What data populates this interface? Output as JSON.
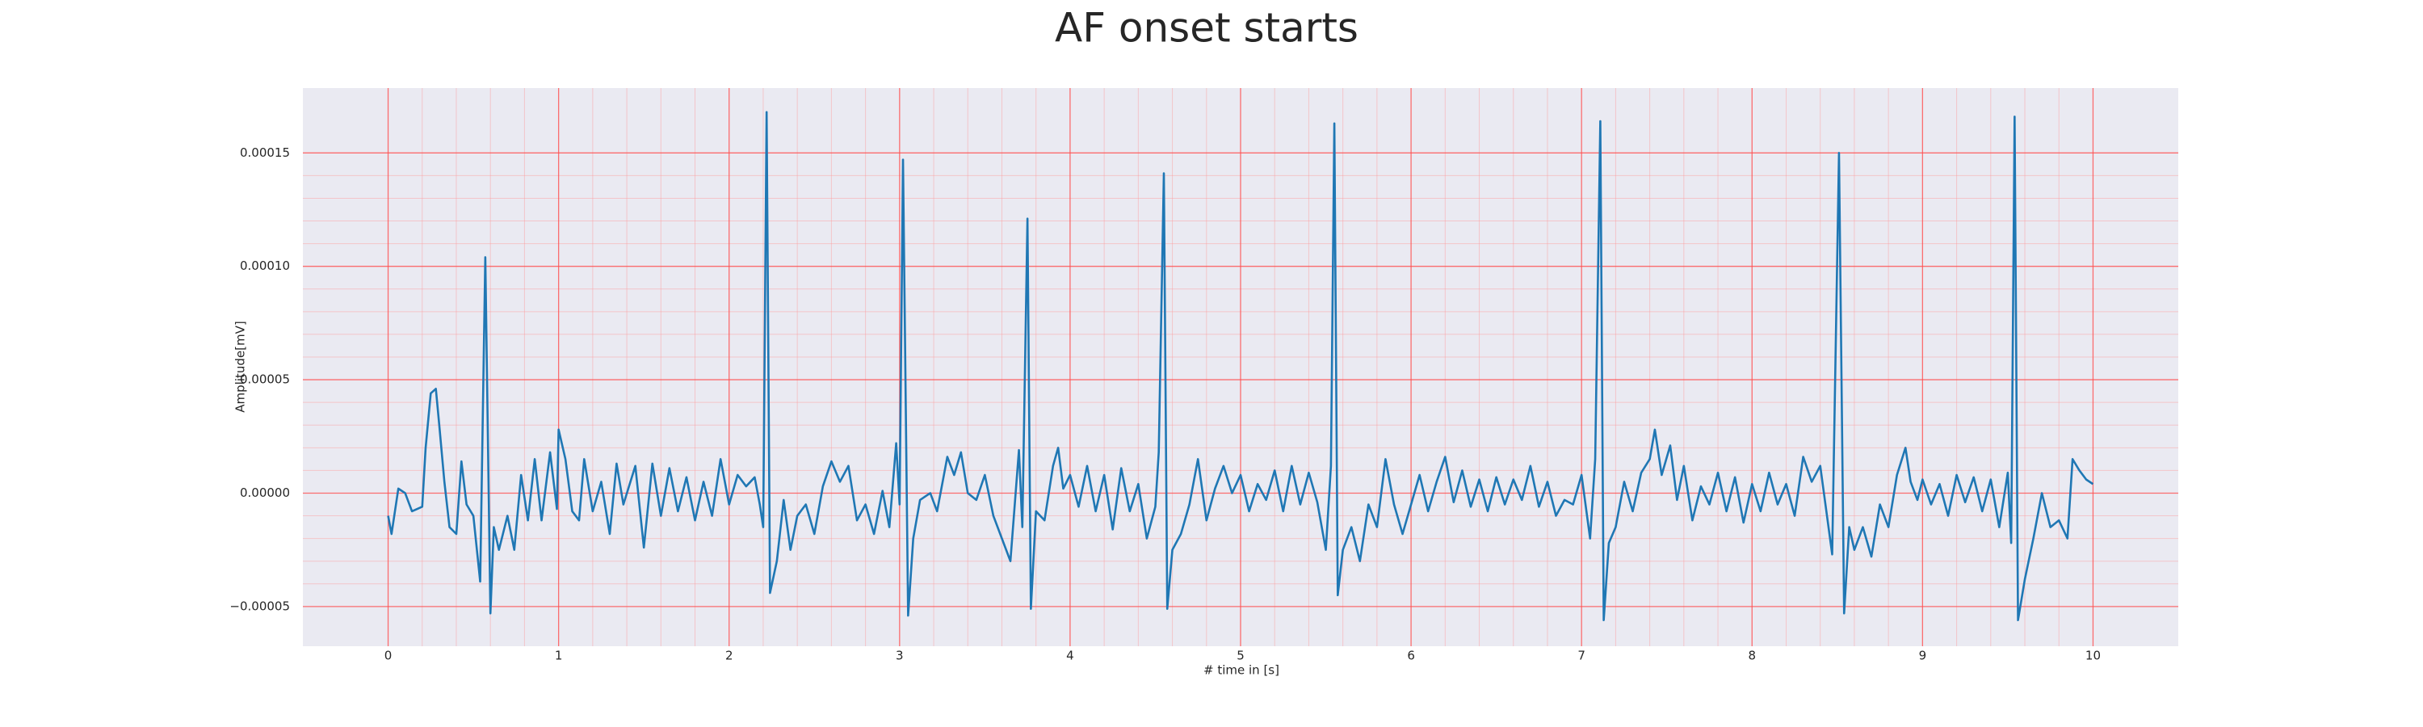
{
  "chart_data": {
    "type": "line",
    "title": "AF onset starts",
    "x_label": "# time in [s]",
    "y_label": "Amplitude[mV]",
    "color": "#1f77b4",
    "grid": true,
    "minor_grid": true,
    "xlim": [
      -0.5,
      10.5
    ],
    "ylim": [
      -6.75e-05,
      0.0001786
    ],
    "xticks": [
      0,
      1,
      2,
      3,
      4,
      5,
      6,
      7,
      8,
      9,
      10
    ],
    "yticks": [
      {
        "value": -5e-05,
        "label": "−0.00005"
      },
      {
        "value": 0,
        "label": "0.00000"
      },
      {
        "value": 5e-05,
        "label": "0.00005"
      },
      {
        "value": 0.0001,
        "label": "0.00010"
      },
      {
        "value": 0.00015,
        "label": "0.00015"
      }
    ],
    "x": [
      0,
      0.02,
      0.06,
      0.1,
      0.14,
      0.2,
      0.22,
      0.25,
      0.28,
      0.3,
      0.33,
      0.36,
      0.4,
      0.43,
      0.46,
      0.5,
      0.54,
      0.57,
      0.6,
      0.62,
      0.65,
      0.7,
      0.74,
      0.78,
      0.82,
      0.86,
      0.9,
      0.95,
      0.99,
      1.0,
      1.04,
      1.08,
      1.12,
      1.15,
      1.2,
      1.25,
      1.3,
      1.34,
      1.38,
      1.45,
      1.5,
      1.55,
      1.6,
      1.65,
      1.7,
      1.75,
      1.8,
      1.85,
      1.9,
      1.95,
      2.0,
      2.05,
      2.1,
      2.15,
      2.18,
      2.2,
      2.22,
      2.24,
      2.28,
      2.32,
      2.36,
      2.4,
      2.45,
      2.5,
      2.55,
      2.6,
      2.65,
      2.7,
      2.75,
      2.8,
      2.85,
      2.9,
      2.94,
      2.98,
      3.0,
      3.02,
      3.05,
      3.08,
      3.12,
      3.18,
      3.22,
      3.28,
      3.32,
      3.36,
      3.4,
      3.45,
      3.5,
      3.55,
      3.6,
      3.65,
      3.7,
      3.72,
      3.75,
      3.77,
      3.8,
      3.85,
      3.9,
      3.93,
      3.96,
      4.0,
      4.05,
      4.1,
      4.15,
      4.2,
      4.25,
      4.3,
      4.35,
      4.4,
      4.45,
      4.5,
      4.52,
      4.55,
      4.57,
      4.6,
      4.65,
      4.7,
      4.75,
      4.8,
      4.85,
      4.9,
      4.95,
      5.0,
      5.05,
      5.1,
      5.15,
      5.2,
      5.25,
      5.3,
      5.35,
      5.4,
      5.45,
      5.5,
      5.53,
      5.55,
      5.57,
      5.6,
      5.65,
      5.7,
      5.75,
      5.8,
      5.85,
      5.9,
      5.95,
      6.0,
      6.05,
      6.1,
      6.15,
      6.2,
      6.25,
      6.3,
      6.35,
      6.4,
      6.45,
      6.5,
      6.55,
      6.6,
      6.65,
      6.7,
      6.75,
      6.8,
      6.85,
      6.9,
      6.95,
      7.0,
      7.05,
      7.08,
      7.11,
      7.13,
      7.16,
      7.2,
      7.25,
      7.3,
      7.35,
      7.4,
      7.43,
      7.47,
      7.52,
      7.56,
      7.6,
      7.65,
      7.7,
      7.75,
      7.8,
      7.85,
      7.9,
      7.95,
      8.0,
      8.05,
      8.1,
      8.15,
      8.2,
      8.25,
      8.3,
      8.35,
      8.4,
      8.47,
      8.51,
      8.54,
      8.57,
      8.6,
      8.65,
      8.7,
      8.75,
      8.8,
      8.85,
      8.9,
      8.93,
      8.97,
      9.0,
      9.05,
      9.1,
      9.15,
      9.2,
      9.25,
      9.3,
      9.35,
      9.4,
      9.45,
      9.5,
      9.52,
      9.54,
      9.56,
      9.6,
      9.65,
      9.7,
      9.75,
      9.8,
      9.85,
      9.88,
      9.92,
      9.96,
      10.0
    ],
    "values": [
      -1e-05,
      -1.8e-05,
      2e-06,
      0,
      -8e-06,
      -6e-06,
      2e-05,
      4.4e-05,
      4.6e-05,
      3e-05,
      5e-06,
      -1.5e-05,
      -1.8e-05,
      1.4e-05,
      -5e-06,
      -1e-05,
      -3.9e-05,
      0.000104,
      -5.3e-05,
      -1.5e-05,
      -2.5e-05,
      -1e-05,
      -2.5e-05,
      8e-06,
      -1.2e-05,
      1.5e-05,
      -1.2e-05,
      1.8e-05,
      -7e-06,
      2.8e-05,
      1.5e-05,
      -8e-06,
      -1.2e-05,
      1.5e-05,
      -8e-06,
      5e-06,
      -1.8e-05,
      1.3e-05,
      -5e-06,
      1.2e-05,
      -2.4e-05,
      1.3e-05,
      -1e-05,
      1.1e-05,
      -8e-06,
      7e-06,
      -1.2e-05,
      5e-06,
      -1e-05,
      1.5e-05,
      -5e-06,
      8e-06,
      3e-06,
      7e-06,
      -5e-06,
      -1.5e-05,
      0.000168,
      -4.4e-05,
      -3e-05,
      -3e-06,
      -2.5e-05,
      -1e-05,
      -5e-06,
      -1.8e-05,
      3e-06,
      1.4e-05,
      5e-06,
      1.2e-05,
      -1.2e-05,
      -5e-06,
      -1.8e-05,
      1e-06,
      -1.5e-05,
      2.2e-05,
      -5e-06,
      0.000147,
      -5.4e-05,
      -2e-05,
      -3e-06,
      0,
      -8e-06,
      1.6e-05,
      8e-06,
      1.8e-05,
      0,
      -3e-06,
      8e-06,
      -1e-05,
      -2e-05,
      -3e-05,
      1.9e-05,
      -1.5e-05,
      0.000121,
      -5.1e-05,
      -8e-06,
      -1.2e-05,
      1.2e-05,
      2e-05,
      2e-06,
      8e-06,
      -6e-06,
      1.2e-05,
      -8e-06,
      8e-06,
      -1.6e-05,
      1.1e-05,
      -8e-06,
      4e-06,
      -2e-05,
      -6e-06,
      1.8e-05,
      0.000141,
      -5.1e-05,
      -2.5e-05,
      -1.8e-05,
      -5e-06,
      1.5e-05,
      -1.2e-05,
      2e-06,
      1.2e-05,
      0,
      8e-06,
      -8e-06,
      4e-06,
      -3e-06,
      1e-05,
      -8e-06,
      1.2e-05,
      -5e-06,
      9e-06,
      -4e-06,
      -2.5e-05,
      1.2e-05,
      0.000163,
      -4.5e-05,
      -2.5e-05,
      -1.5e-05,
      -3e-05,
      -5e-06,
      -1.5e-05,
      1.5e-05,
      -5e-06,
      -1.8e-05,
      -5e-06,
      8e-06,
      -8e-06,
      5e-06,
      1.6e-05,
      -4e-06,
      1e-05,
      -6e-06,
      6e-06,
      -8e-06,
      7e-06,
      -5e-06,
      6e-06,
      -3e-06,
      1.2e-05,
      -6e-06,
      5e-06,
      -1e-05,
      -3e-06,
      -5e-06,
      8e-06,
      -2e-05,
      1.5e-05,
      0.000164,
      -5.6e-05,
      -2.2e-05,
      -1.5e-05,
      5e-06,
      -8e-06,
      9e-06,
      1.5e-05,
      2.8e-05,
      8e-06,
      2.1e-05,
      -3e-06,
      1.2e-05,
      -1.2e-05,
      3e-06,
      -5e-06,
      9e-06,
      -8e-06,
      7e-06,
      -1.3e-05,
      4e-06,
      -8e-06,
      9e-06,
      -5e-06,
      4e-06,
      -1e-05,
      1.6e-05,
      5e-06,
      1.2e-05,
      -2.7e-05,
      0.00015,
      -5.3e-05,
      -1.5e-05,
      -2.5e-05,
      -1.5e-05,
      -2.8e-05,
      -5e-06,
      -1.5e-05,
      8e-06,
      2e-05,
      5e-06,
      -3e-06,
      6e-06,
      -5e-06,
      4e-06,
      -1e-05,
      8e-06,
      -4e-06,
      7e-06,
      -8e-06,
      6e-06,
      -1.5e-05,
      9e-06,
      -2.2e-05,
      0.000166,
      -5.6e-05,
      -3.8e-05,
      -2e-05,
      0,
      -1.5e-05,
      -1.2e-05,
      -2e-05,
      1.5e-05,
      1e-05,
      6e-06,
      4e-06
    ]
  }
}
